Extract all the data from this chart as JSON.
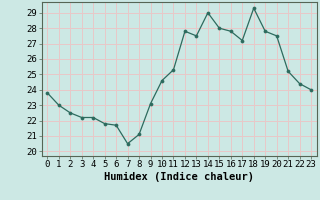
{
  "x": [
    0,
    1,
    2,
    3,
    4,
    5,
    6,
    7,
    8,
    9,
    10,
    11,
    12,
    13,
    14,
    15,
    16,
    17,
    18,
    19,
    20,
    21,
    22,
    23
  ],
  "y": [
    23.8,
    23.0,
    22.5,
    22.2,
    22.2,
    21.8,
    21.7,
    20.5,
    21.1,
    23.1,
    24.6,
    25.3,
    27.8,
    27.5,
    29.0,
    28.0,
    27.8,
    27.2,
    29.3,
    27.8,
    27.5,
    25.2,
    24.4,
    24.0
  ],
  "xlabel": "Humidex (Indice chaleur)",
  "line_color": "#2d6b5e",
  "marker_color": "#2d6b5e",
  "bg_color": "#cce8e4",
  "grid_color": "#e8c8c8",
  "yticks": [
    20,
    21,
    22,
    23,
    24,
    25,
    26,
    27,
    28,
    29
  ],
  "xticks": [
    0,
    1,
    2,
    3,
    4,
    5,
    6,
    7,
    8,
    9,
    10,
    11,
    12,
    13,
    14,
    15,
    16,
    17,
    18,
    19,
    20,
    21,
    22,
    23
  ],
  "tick_fontsize": 6.5,
  "xlabel_fontsize": 7.5
}
